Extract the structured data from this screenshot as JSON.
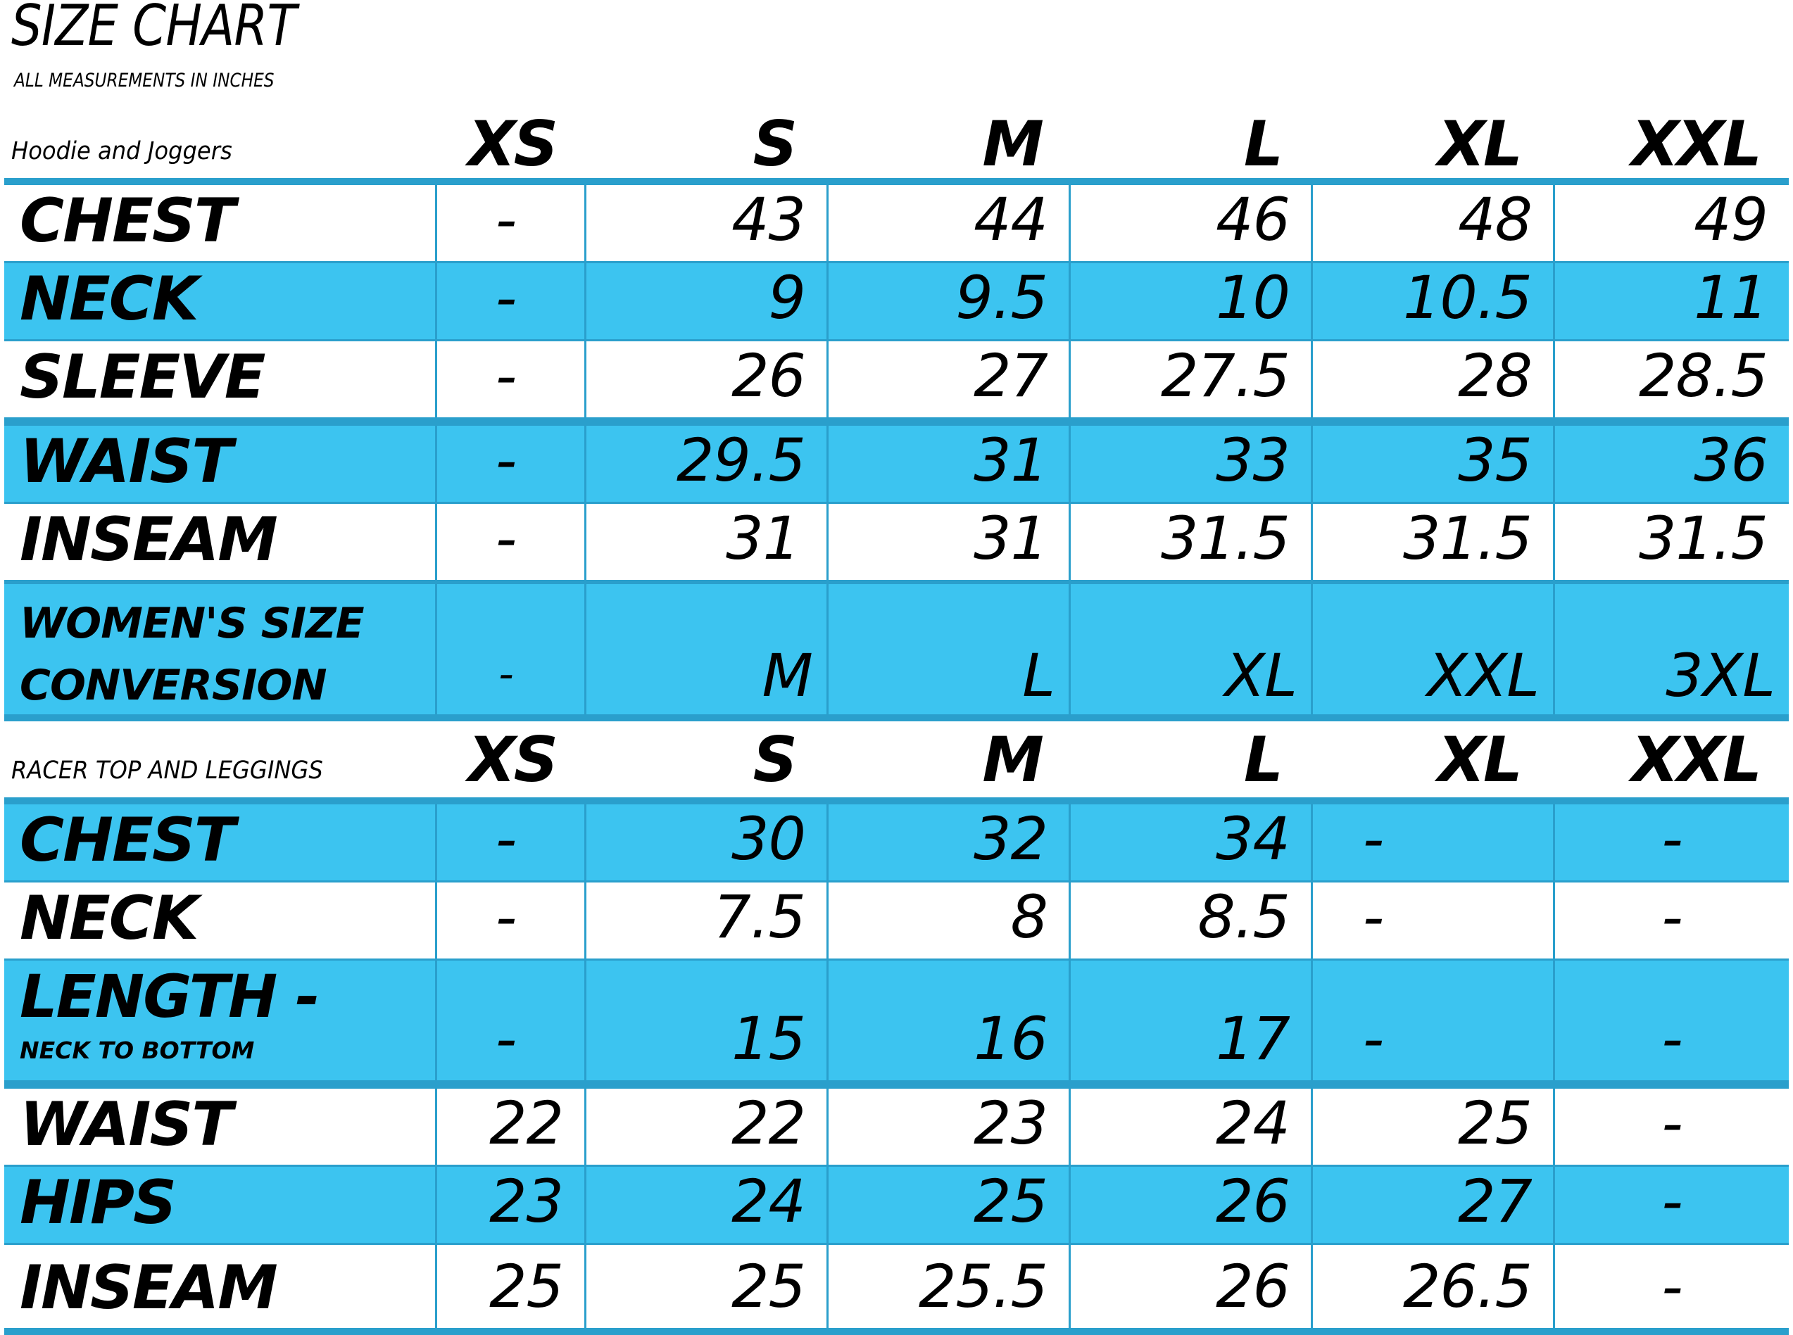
{
  "title": "SIZE CHART",
  "subtitle": "ALL MEASUREMENTS IN INCHES",
  "sections": [
    {
      "name": "Hoodie and Joggers",
      "sizes": [
        "XS",
        "S",
        "M",
        "L",
        "XL",
        "XXL"
      ],
      "rows": [
        {
          "label": "CHEST",
          "values": [
            "-",
            "43",
            "44",
            "46",
            "48",
            "49"
          ]
        },
        {
          "label": "NECK",
          "values": [
            "-",
            "9",
            "9.5",
            "10",
            "10.5",
            "11"
          ]
        },
        {
          "label": "SLEEVE",
          "values": [
            "-",
            "26",
            "27",
            "27.5",
            "28",
            "28.5"
          ]
        },
        {
          "label": "WAIST",
          "values": [
            "-",
            "29.5",
            "31",
            "33",
            "35",
            "36"
          ]
        },
        {
          "label": "INSEAM",
          "values": [
            "-",
            "31",
            "31",
            "31.5",
            "31.5",
            "31.5"
          ]
        },
        {
          "label_line1": "WOMEN'S SIZE",
          "label_line2": "CONVERSION",
          "values": [
            "-",
            "M",
            "L",
            "XL",
            "XXL",
            "3XL"
          ]
        }
      ]
    },
    {
      "name": "RACER TOP AND LEGGINGS",
      "sizes": [
        "XS",
        "S",
        "M",
        "L",
        "XL",
        "XXL"
      ],
      "rows": [
        {
          "label": "CHEST",
          "values": [
            "-",
            "30",
            "32",
            "34",
            "-",
            "-"
          ]
        },
        {
          "label": "NECK",
          "values": [
            "-",
            "7.5",
            "8",
            "8.5",
            "-",
            "-"
          ]
        },
        {
          "label_line1": "LENGTH -",
          "label_line2": "NECK TO BOTTOM",
          "values": [
            "-",
            "15",
            "16",
            "17",
            "-",
            "-"
          ]
        },
        {
          "label": "WAIST",
          "values": [
            "22",
            "22",
            "23",
            "24",
            "25",
            "-"
          ]
        },
        {
          "label": "HIPS",
          "values": [
            "23",
            "24",
            "25",
            "26",
            "27",
            "-"
          ]
        },
        {
          "label": "INSEAM",
          "values": [
            "25",
            "25",
            "25.5",
            "26",
            "26.5",
            "-"
          ]
        }
      ]
    }
  ],
  "colors": {
    "accent": "#3cc4f0",
    "border": "#2a9fcc",
    "text": "#000000",
    "background": "#ffffff"
  }
}
